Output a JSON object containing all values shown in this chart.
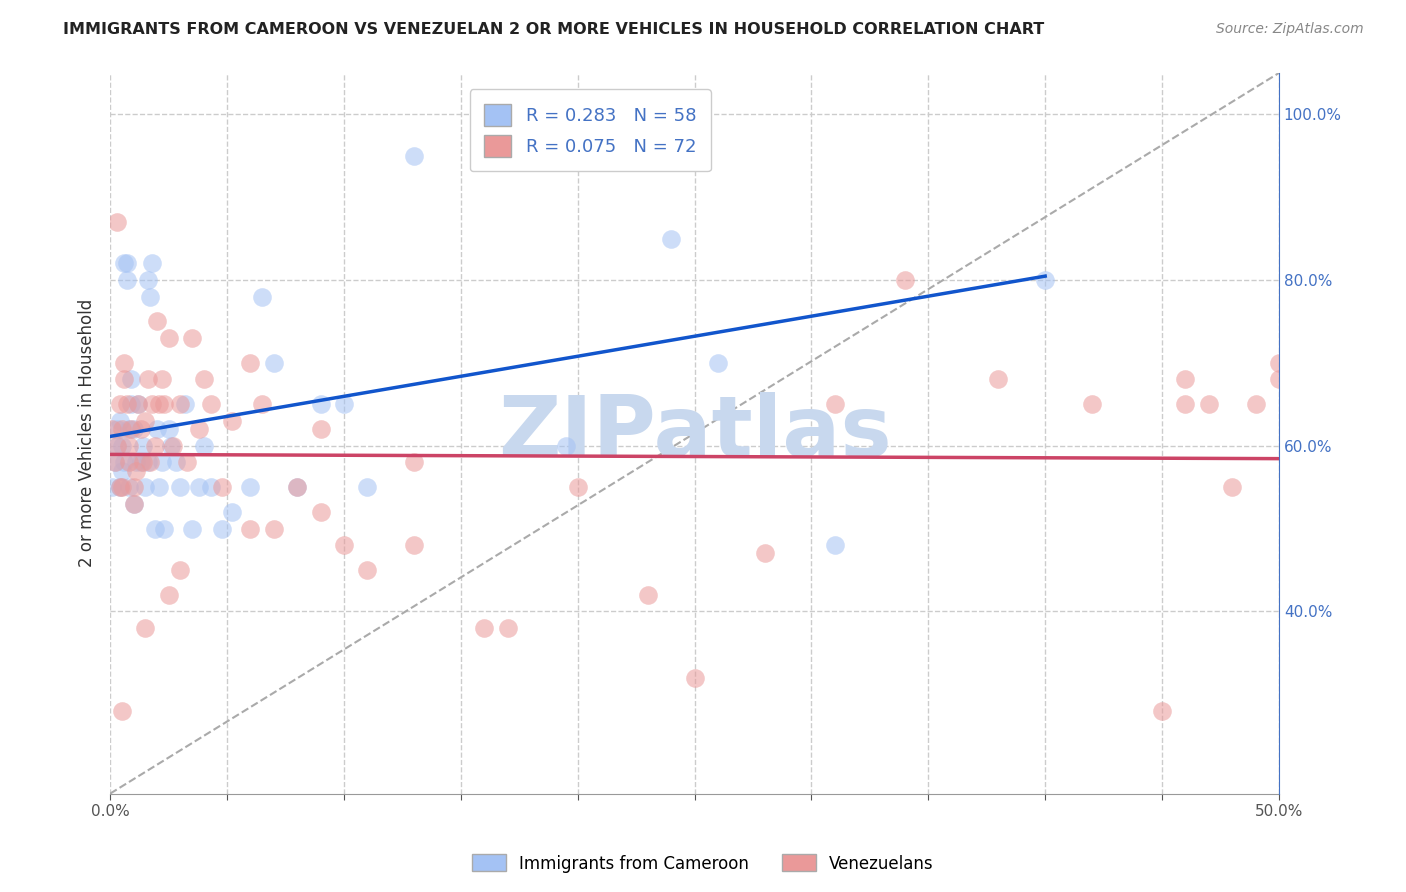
{
  "title": "IMMIGRANTS FROM CAMEROON VS VENEZUELAN 2 OR MORE VEHICLES IN HOUSEHOLD CORRELATION CHART",
  "source": "Source: ZipAtlas.com",
  "ylabel": "2 or more Vehicles in Household",
  "legend_labels": [
    "Immigrants from Cameroon",
    "Venezuelans"
  ],
  "r_blue": 0.283,
  "n_blue": 58,
  "r_pink": 0.075,
  "n_pink": 72,
  "xlim": [
    0.0,
    0.5
  ],
  "ylim": [
    0.18,
    1.05
  ],
  "xticks": [
    0.0,
    0.05,
    0.1,
    0.15,
    0.2,
    0.25,
    0.3,
    0.35,
    0.4,
    0.45,
    0.5
  ],
  "xtick_labels": [
    "0.0%",
    "",
    "",
    "",
    "",
    "",
    "",
    "",
    "",
    "",
    "50.0%"
  ],
  "yticks_right": [
    0.4,
    0.6,
    0.8,
    1.0
  ],
  "ytick_labels_right": [
    "40.0%",
    "60.0%",
    "80.0%",
    "100.0%"
  ],
  "grid_color": "#cccccc",
  "blue_color": "#a4c2f4",
  "pink_color": "#ea9999",
  "blue_line_color": "#1155cc",
  "pink_line_color": "#cc4466",
  "dashed_line_color": "#aaaaaa",
  "watermark_color": "#c8d8ee",
  "background_color": "#ffffff",
  "blue_x": [
    0.001,
    0.002,
    0.003,
    0.003,
    0.004,
    0.004,
    0.005,
    0.005,
    0.006,
    0.006,
    0.007,
    0.007,
    0.008,
    0.008,
    0.009,
    0.009,
    0.01,
    0.01,
    0.011,
    0.012,
    0.013,
    0.014,
    0.015,
    0.016,
    0.016,
    0.017,
    0.018,
    0.019,
    0.02,
    0.021,
    0.022,
    0.023,
    0.025,
    0.026,
    0.028,
    0.03,
    0.032,
    0.035,
    0.038,
    0.04,
    0.043,
    0.048,
    0.052,
    0.06,
    0.065,
    0.07,
    0.08,
    0.09,
    0.1,
    0.11,
    0.13,
    0.16,
    0.195,
    0.21,
    0.24,
    0.26,
    0.31,
    0.4
  ],
  "blue_y": [
    0.55,
    0.58,
    0.6,
    0.62,
    0.55,
    0.63,
    0.57,
    0.6,
    0.58,
    0.82,
    0.82,
    0.8,
    0.55,
    0.62,
    0.68,
    0.65,
    0.53,
    0.62,
    0.58,
    0.65,
    0.58,
    0.6,
    0.55,
    0.58,
    0.8,
    0.78,
    0.82,
    0.5,
    0.62,
    0.55,
    0.58,
    0.5,
    0.62,
    0.6,
    0.58,
    0.55,
    0.65,
    0.5,
    0.55,
    0.6,
    0.55,
    0.5,
    0.52,
    0.55,
    0.78,
    0.7,
    0.55,
    0.65,
    0.65,
    0.55,
    0.95,
    0.97,
    0.6,
    0.95,
    0.85,
    0.7,
    0.48,
    0.8
  ],
  "pink_x": [
    0.001,
    0.002,
    0.003,
    0.003,
    0.004,
    0.004,
    0.005,
    0.005,
    0.006,
    0.006,
    0.007,
    0.008,
    0.008,
    0.009,
    0.01,
    0.01,
    0.011,
    0.012,
    0.013,
    0.014,
    0.015,
    0.016,
    0.017,
    0.018,
    0.019,
    0.02,
    0.021,
    0.022,
    0.023,
    0.025,
    0.027,
    0.03,
    0.033,
    0.035,
    0.038,
    0.04,
    0.043,
    0.048,
    0.052,
    0.06,
    0.065,
    0.07,
    0.08,
    0.09,
    0.1,
    0.11,
    0.13,
    0.16,
    0.2,
    0.23,
    0.25,
    0.28,
    0.31,
    0.34,
    0.38,
    0.42,
    0.45,
    0.46,
    0.46,
    0.47,
    0.48,
    0.49,
    0.5,
    0.5,
    0.17,
    0.13,
    0.09,
    0.06,
    0.03,
    0.025,
    0.015,
    0.005
  ],
  "pink_y": [
    0.62,
    0.58,
    0.6,
    0.87,
    0.55,
    0.65,
    0.62,
    0.55,
    0.68,
    0.7,
    0.65,
    0.58,
    0.6,
    0.62,
    0.55,
    0.53,
    0.57,
    0.65,
    0.62,
    0.58,
    0.63,
    0.68,
    0.58,
    0.65,
    0.6,
    0.75,
    0.65,
    0.68,
    0.65,
    0.73,
    0.6,
    0.65,
    0.58,
    0.73,
    0.62,
    0.68,
    0.65,
    0.55,
    0.63,
    0.7,
    0.65,
    0.5,
    0.55,
    0.62,
    0.48,
    0.45,
    0.58,
    0.38,
    0.55,
    0.42,
    0.32,
    0.47,
    0.65,
    0.8,
    0.68,
    0.65,
    0.28,
    0.65,
    0.68,
    0.65,
    0.55,
    0.65,
    0.68,
    0.7,
    0.38,
    0.48,
    0.52,
    0.5,
    0.45,
    0.42,
    0.38,
    0.28
  ]
}
